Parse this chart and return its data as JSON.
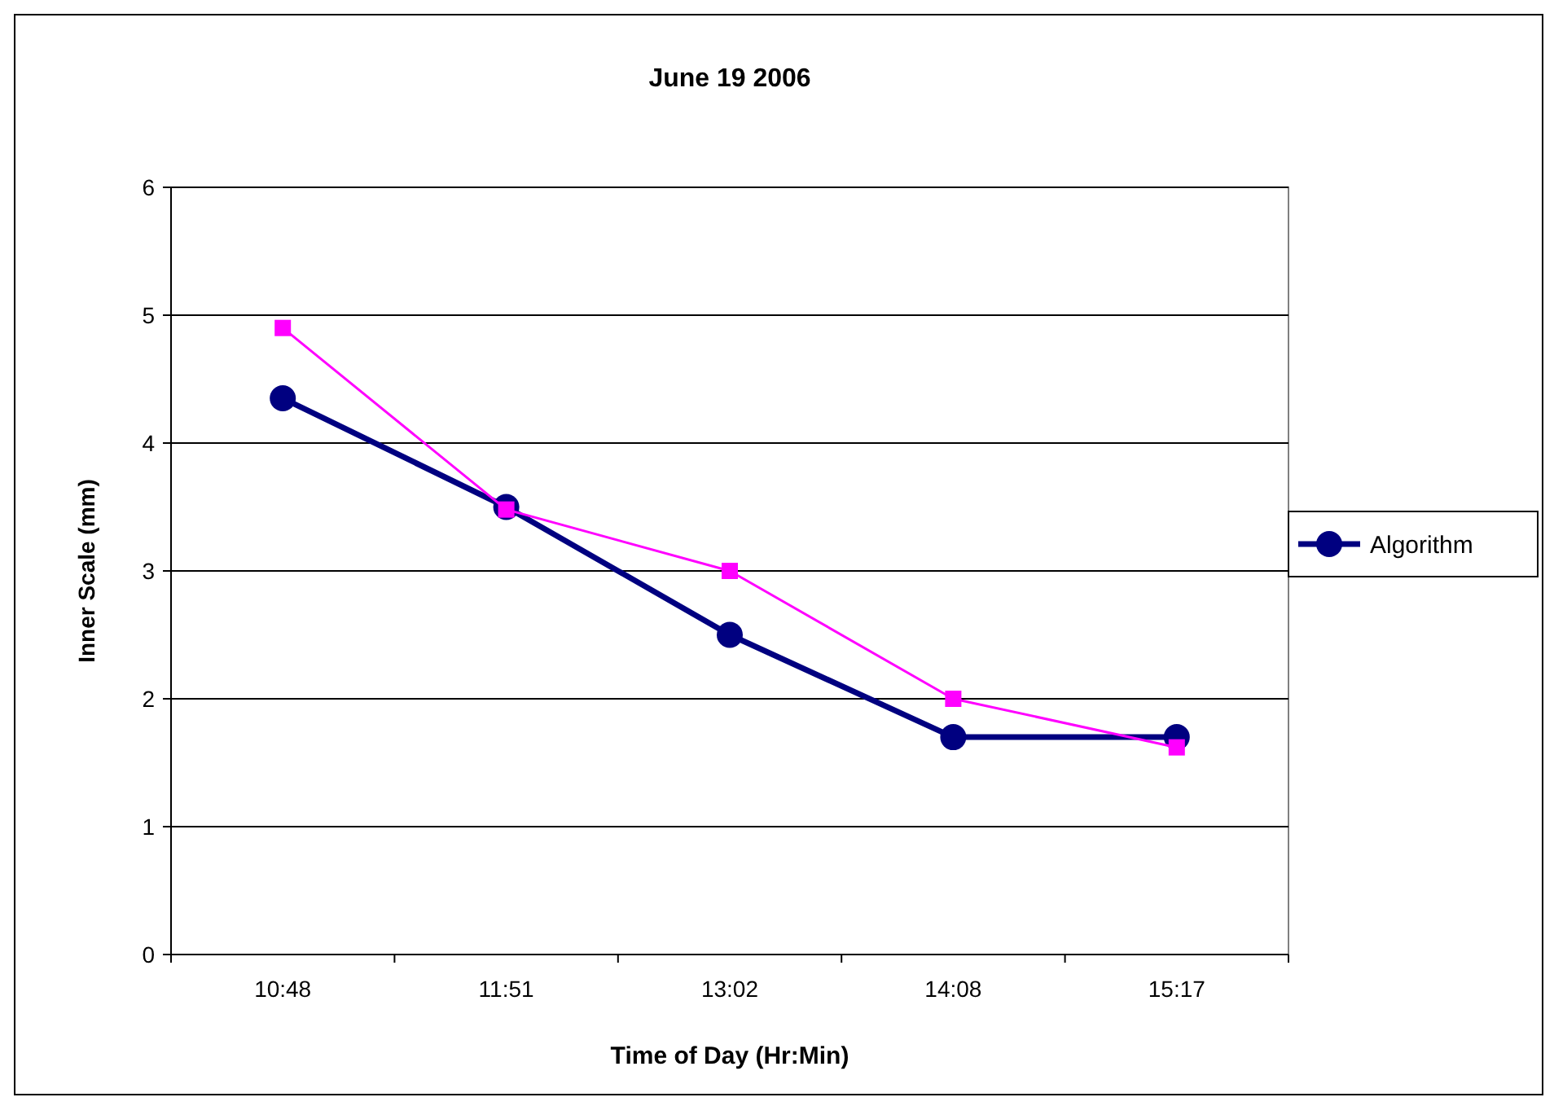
{
  "chart_data": {
    "type": "line",
    "title": "June 19 2006",
    "xlabel": "Time of Day (Hr:Min)",
    "ylabel": "Inner Scale (mm)",
    "categories": [
      "10:48",
      "11:51",
      "13:02",
      "14:08",
      "15:17"
    ],
    "series": [
      {
        "name": "Algorithm",
        "color": "#000080",
        "values": [
          4.35,
          3.5,
          2.5,
          1.7,
          1.7
        ],
        "marker": "circle"
      },
      {
        "color": "#ff00ff",
        "values": [
          4.9,
          3.48,
          3.0,
          2.0,
          1.62
        ],
        "marker": "square"
      }
    ],
    "ylim": [
      0,
      6
    ],
    "yticks": [
      0,
      1,
      2,
      3,
      4,
      5,
      6
    ],
    "grid": "y",
    "legend": "right"
  }
}
